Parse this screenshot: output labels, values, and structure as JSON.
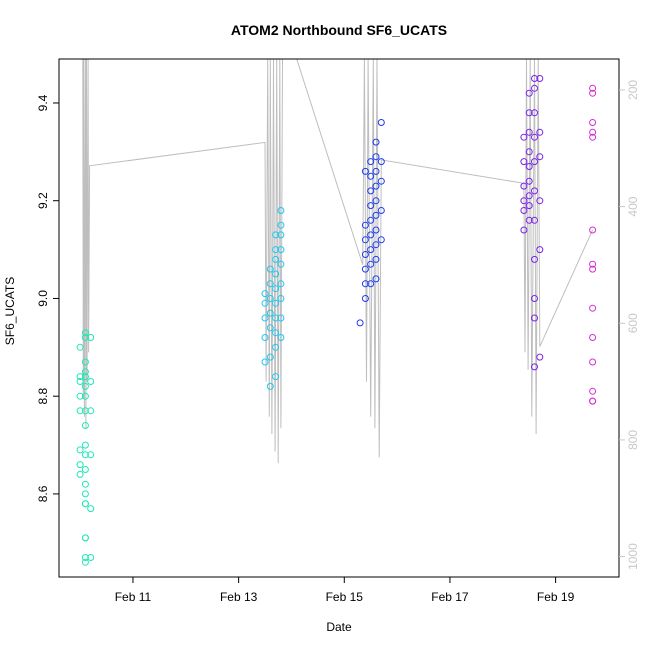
{
  "chart_data": {
    "type": "scatter",
    "title": "ATOM2 Northbound SF6_UCATS",
    "xlabel": "Date",
    "ylabel": "SF6_UCATS",
    "x_ticks": [
      "Feb 11",
      "Feb 13",
      "Feb 15",
      "Feb 17",
      "Feb 19"
    ],
    "x_tick_days": [
      11,
      13,
      15,
      17,
      19
    ],
    "xlim_days": [
      9.6,
      20.2
    ],
    "ylim": [
      8.43,
      9.49
    ],
    "y_ticks": [
      8.6,
      8.8,
      9.0,
      9.2,
      9.4
    ],
    "y2_ticks": [
      200,
      400,
      600,
      800,
      1000
    ],
    "y2lim": [
      1035,
      147
    ],
    "y2_color": "#c8c8c8",
    "grid": false,
    "series": [
      {
        "color": "#1de9b6",
        "x": [
          10.0,
          10.0,
          10.0,
          10.0,
          10.0,
          10.0,
          10.0,
          10.0,
          10.1,
          10.1,
          10.1,
          10.1,
          10.1,
          10.1,
          10.1,
          10.1,
          10.1,
          10.1,
          10.1,
          10.1,
          10.1,
          10.1,
          10.1,
          10.1,
          10.1,
          10.1,
          10.1,
          10.1,
          10.2,
          10.2,
          10.2,
          10.2,
          10.2,
          10.2
        ],
        "y": [
          8.64,
          8.66,
          8.69,
          8.77,
          8.8,
          8.83,
          8.84,
          8.9,
          8.46,
          8.47,
          8.51,
          8.58,
          8.6,
          8.62,
          8.65,
          8.7,
          8.74,
          8.77,
          8.8,
          8.82,
          8.84,
          8.85,
          8.87,
          8.92,
          8.93,
          8.68,
          8.58,
          8.51,
          8.47,
          8.57,
          8.68,
          8.77,
          8.83,
          8.92
        ]
      },
      {
        "color": "#1ec8f0",
        "x": [
          13.5,
          13.5,
          13.5,
          13.5,
          13.5,
          13.6,
          13.6,
          13.6,
          13.6,
          13.6,
          13.6,
          13.6,
          13.7,
          13.7,
          13.7,
          13.7,
          13.7,
          13.7,
          13.7,
          13.7,
          13.7,
          13.7,
          13.8,
          13.8,
          13.8,
          13.8,
          13.8,
          13.8,
          13.8,
          13.8,
          13.8
        ],
        "y": [
          8.87,
          8.92,
          8.96,
          8.99,
          9.01,
          8.82,
          8.88,
          8.94,
          8.97,
          9.0,
          9.03,
          9.06,
          8.84,
          8.9,
          8.93,
          8.96,
          8.99,
          9.02,
          9.05,
          9.08,
          9.1,
          9.13,
          8.92,
          8.96,
          9.0,
          9.03,
          9.07,
          9.1,
          9.13,
          9.15,
          9.18
        ]
      },
      {
        "color": "#1e3cf0",
        "x": [
          15.3,
          15.4,
          15.4,
          15.4,
          15.4,
          15.4,
          15.4,
          15.4,
          15.5,
          15.5,
          15.5,
          15.5,
          15.5,
          15.5,
          15.5,
          15.5,
          15.5,
          15.6,
          15.6,
          15.6,
          15.6,
          15.6,
          15.6,
          15.6,
          15.6,
          15.6,
          15.6,
          15.7,
          15.7,
          15.7,
          15.7,
          15.7
        ],
        "y": [
          8.95,
          9.0,
          9.03,
          9.06,
          9.09,
          9.12,
          9.15,
          9.26,
          9.03,
          9.07,
          9.1,
          9.13,
          9.16,
          9.19,
          9.22,
          9.25,
          9.28,
          9.04,
          9.08,
          9.11,
          9.14,
          9.17,
          9.2,
          9.23,
          9.26,
          9.29,
          9.32,
          9.12,
          9.18,
          9.24,
          9.28,
          9.36
        ]
      },
      {
        "color": "#7a22e8",
        "x": [
          18.4,
          18.4,
          18.4,
          18.4,
          18.4,
          18.4,
          18.5,
          18.5,
          18.5,
          18.5,
          18.5,
          18.5,
          18.5,
          18.5,
          18.5,
          18.6,
          18.6,
          18.6,
          18.6,
          18.6,
          18.6,
          18.6,
          18.6,
          18.6,
          18.6,
          18.6,
          18.7,
          18.7,
          18.7,
          18.7,
          18.7,
          18.7
        ],
        "y": [
          9.14,
          9.18,
          9.2,
          9.23,
          9.28,
          9.33,
          9.16,
          9.19,
          9.21,
          9.24,
          9.27,
          9.3,
          9.34,
          9.38,
          9.42,
          8.86,
          8.96,
          9.0,
          9.08,
          9.16,
          9.22,
          9.28,
          9.33,
          9.38,
          9.43,
          9.45,
          8.88,
          9.1,
          9.2,
          9.29,
          9.34,
          9.45
        ]
      },
      {
        "color": "#d42ed4",
        "x": [
          19.7,
          19.7,
          19.7,
          19.7,
          19.7,
          19.7,
          19.7,
          19.7,
          19.7,
          19.7,
          19.7,
          19.7,
          19.7,
          19.7
        ],
        "y": [
          8.79,
          8.81,
          8.87,
          8.92,
          8.98,
          9.06,
          9.07,
          9.14,
          9.33,
          9.34,
          9.36,
          9.42,
          9.43,
          8.79
        ]
      }
    ],
    "pressure_trace": {
      "color": "#bebebe",
      "x": [
        10.05,
        10.06,
        10.07,
        10.08,
        10.1,
        10.11,
        10.12,
        10.13,
        10.15,
        10.16,
        10.18,
        13.5,
        13.52,
        13.55,
        13.58,
        13.6,
        13.63,
        13.66,
        13.69,
        13.72,
        13.75,
        13.78,
        13.8,
        13.83,
        14.1,
        15.35,
        15.38,
        15.42,
        15.45,
        15.5,
        15.55,
        15.58,
        15.62,
        15.66,
        15.7,
        18.4,
        18.42,
        18.45,
        18.48,
        18.52,
        18.55,
        18.6,
        18.63,
        18.67,
        18.7,
        19.7
      ],
      "y": [
        145,
        730,
        145,
        760,
        145,
        780,
        145,
        700,
        145,
        650,
        330,
        290,
        700,
        145,
        760,
        145,
        790,
        145,
        820,
        145,
        840,
        145,
        780,
        145,
        145,
        500,
        145,
        700,
        145,
        760,
        145,
        780,
        145,
        830,
        320,
        360,
        650,
        145,
        680,
        145,
        760,
        145,
        790,
        145,
        640,
        440
      ]
    }
  }
}
